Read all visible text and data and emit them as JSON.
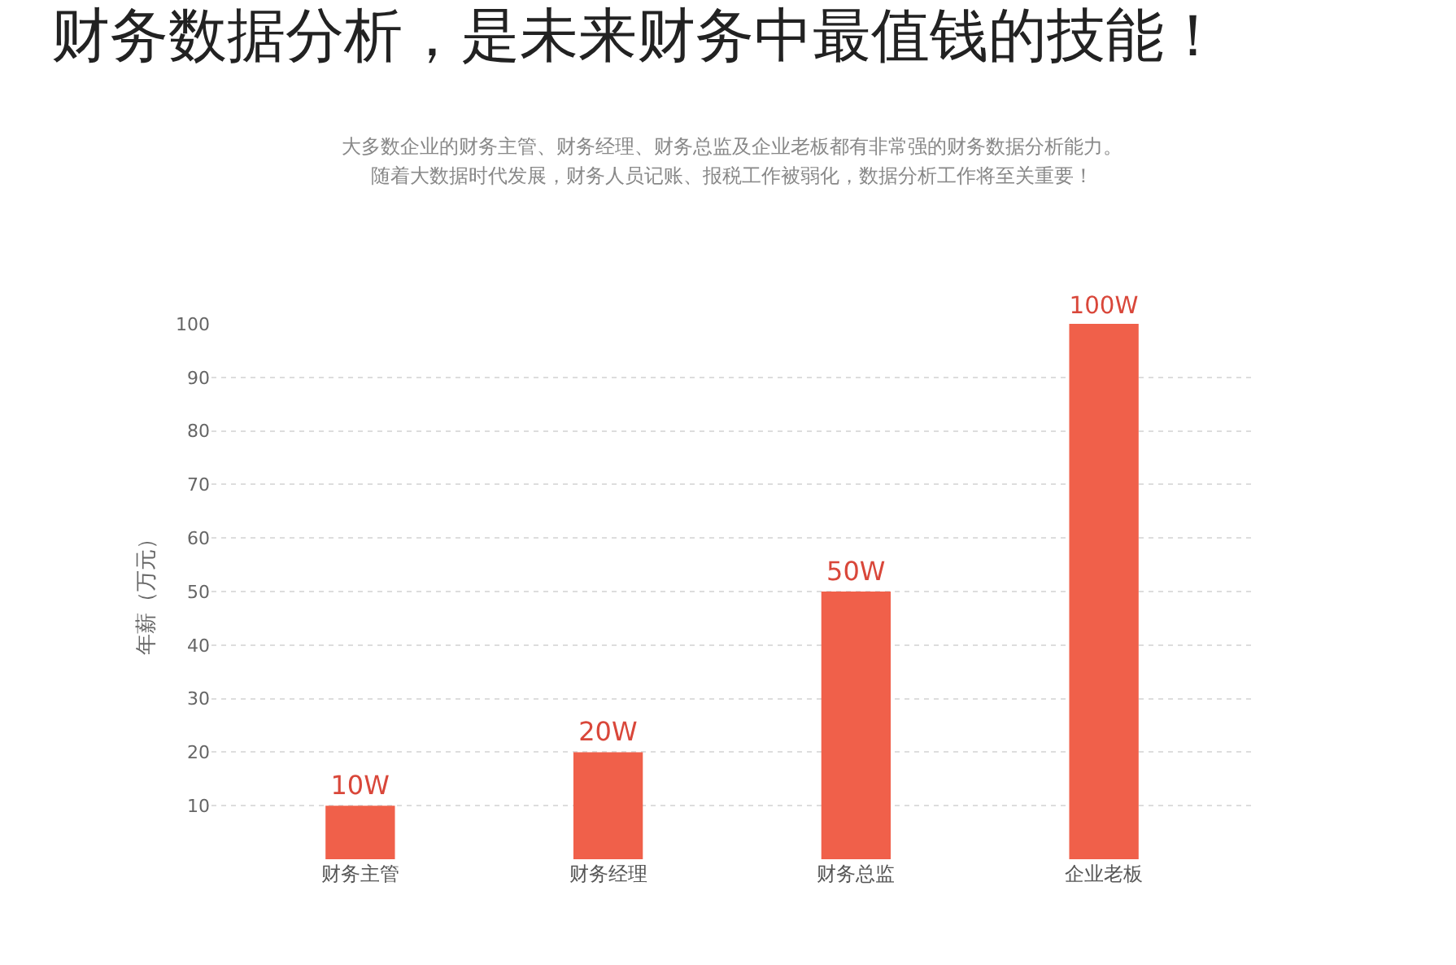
{
  "chart_data": {
    "type": "bar",
    "title": "财务数据分析，是未来财务中最值钱的技能！",
    "subtitle": "大多数企业的财务主管、财务经理、财务总监及企业老板都有非常强的财务数据分析能力。",
    "annotations": [
      "随着大数据时代发展，财务人员记账、报税工作被弱化，数据分析工作将至关重要！"
    ],
    "ylabel": "年薪（万元）",
    "categories": [
      "财务主管",
      "财务经理",
      "财务总监",
      "企业老板"
    ],
    "values": [
      10,
      20,
      50,
      100
    ],
    "value_labels": [
      "10W",
      "20W",
      "50W",
      "100W"
    ],
    "color": "#f0604a",
    "ylim": [
      0,
      100
    ],
    "yticks": [
      10,
      20,
      30,
      40,
      50,
      60,
      70,
      80,
      90,
      100
    ],
    "grid": "y",
    "legend": false
  }
}
